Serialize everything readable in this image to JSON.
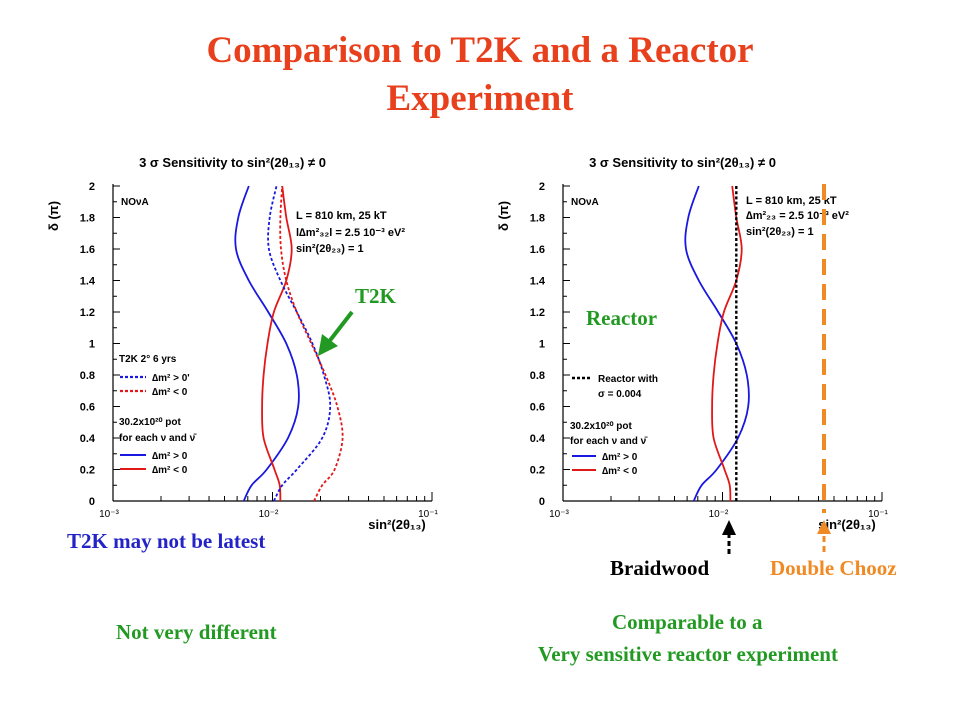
{
  "slide": {
    "title_line1": "Comparison to T2K and a Reactor",
    "title_line2": "Experiment",
    "left_note": "T2K may not be latest",
    "left_caption": "Not very different",
    "right_caption_line1": "Comparable to a",
    "right_caption_line2": "Very sensitive reactor experiment",
    "t2k_callout": "T2K",
    "reactor_callout": "Reactor",
    "braidwood_label": "Braidwood",
    "doublechooz_label": "Double Chooz",
    "colors": {
      "title": "#e8401c",
      "blue_text": "#2323c8",
      "green": "#229922",
      "orange": "#f08a24",
      "blue": "#1818e0",
      "red": "#e01818"
    }
  },
  "chart_data": [
    {
      "type": "line",
      "title": "3 σ Sensitivity to sin²(2θ₁₃) ≠ 0",
      "xlabel": "sin²(2θ₁₃)",
      "ylabel": "δ (π)",
      "xscale": "log",
      "xlim": [
        0.001,
        0.1
      ],
      "ylim": [
        0,
        2
      ],
      "x_ticks": [
        "10⁻³",
        "10⁻²",
        "10⁻¹"
      ],
      "y_ticks": [
        "0",
        "0.2",
        "0.4",
        "0.6",
        "0.8",
        "1",
        "1.2",
        "1.4",
        "1.6",
        "1.8",
        "2"
      ],
      "annotations": [
        "NOνA",
        "L = 810 km, 25 kT",
        "l∆m²₃₂l = 2.5 10⁻³ eV²",
        "sin²(2θ₂₃) = 1",
        "T2K 2° 6 yrs",
        "30.2x10²⁰ pot",
        "for each ν and ν̄"
      ],
      "series": [
        {
          "name": "∆m² > 0",
          "color": "#1818e0",
          "dash": "solid",
          "points": [
            [
              0.0066,
              0
            ],
            [
              0.0074,
              0.1
            ],
            [
              0.0092,
              0.2
            ],
            [
              0.0125,
              0.4
            ],
            [
              0.0145,
              0.6
            ],
            [
              0.0142,
              0.8
            ],
            [
              0.0122,
              1.0
            ],
            [
              0.0094,
              1.2
            ],
            [
              0.0071,
              1.4
            ],
            [
              0.0059,
              1.6
            ],
            [
              0.0061,
              1.8
            ],
            [
              0.0071,
              2.0
            ]
          ]
        },
        {
          "name": "∆m² < 0",
          "color": "#e01818",
          "dash": "solid",
          "points": [
            [
              0.0112,
              0
            ],
            [
              0.0111,
              0.1
            ],
            [
              0.0103,
              0.2
            ],
            [
              0.0088,
              0.4
            ],
            [
              0.0086,
              0.6
            ],
            [
              0.0088,
              0.8
            ],
            [
              0.0093,
              1.0
            ],
            [
              0.0102,
              1.2
            ],
            [
              0.0122,
              1.4
            ],
            [
              0.0132,
              1.6
            ],
            [
              0.0122,
              1.8
            ],
            [
              0.0115,
              2.0
            ]
          ]
        },
        {
          "name": "∆m² > 0'",
          "color": "#1818e0",
          "dash": "dotted",
          "points": [
            [
              0.0102,
              0
            ],
            [
              0.0115,
              0.1
            ],
            [
              0.0142,
              0.2
            ],
            [
              0.0205,
              0.4
            ],
            [
              0.023,
              0.6
            ],
            [
              0.021,
              0.8
            ],
            [
              0.0178,
              1.0
            ],
            [
              0.0142,
              1.2
            ],
            [
              0.0112,
              1.4
            ],
            [
              0.0095,
              1.6
            ],
            [
              0.0096,
              1.8
            ],
            [
              0.0106,
              2.0
            ]
          ]
        },
        {
          "name": "∆m² < 0",
          "color": "#e01818",
          "dash": "dotted",
          "points": [
            [
              0.0182,
              0
            ],
            [
              0.0205,
              0.1
            ],
            [
              0.0245,
              0.2
            ],
            [
              0.0275,
              0.4
            ],
            [
              0.0255,
              0.6
            ],
            [
              0.0215,
              0.8
            ],
            [
              0.0175,
              1.0
            ],
            [
              0.0142,
              1.2
            ],
            [
              0.0122,
              1.4
            ],
            [
              0.0113,
              1.6
            ],
            [
              0.0112,
              1.8
            ],
            [
              0.0115,
              2.0
            ]
          ]
        }
      ]
    },
    {
      "type": "line",
      "title": "3 σ Sensitivity to sin²(2θ₁₃) ≠ 0",
      "xlabel": "sin²(2θ₁₃)",
      "ylabel": "δ (π)",
      "xscale": "log",
      "xlim": [
        0.001,
        0.1
      ],
      "ylim": [
        0,
        2
      ],
      "x_ticks": [
        "10⁻³",
        "10⁻²",
        "10⁻¹"
      ],
      "y_ticks": [
        "0",
        "0.2",
        "0.4",
        "0.6",
        "0.8",
        "1",
        "1.2",
        "1.4",
        "1.6",
        "1.8",
        "2"
      ],
      "annotations": [
        "NOνA",
        "L = 810 km, 25 kT",
        "∆m²₂₃ = 2.5 10⁻³ eV²",
        "sin²(2θ₂₃) = 1",
        "Reactor with",
        "σ = 0.004",
        "30.2x10²⁰ pot",
        "for each ν and ν̄"
      ],
      "series": [
        {
          "name": "∆m² > 0",
          "color": "#1818e0",
          "dash": "solid",
          "points": [
            [
              0.0066,
              0
            ],
            [
              0.0074,
              0.1
            ],
            [
              0.0092,
              0.2
            ],
            [
              0.0125,
              0.4
            ],
            [
              0.0145,
              0.6
            ],
            [
              0.0142,
              0.8
            ],
            [
              0.0122,
              1.0
            ],
            [
              0.0094,
              1.2
            ],
            [
              0.0071,
              1.4
            ],
            [
              0.0059,
              1.6
            ],
            [
              0.0061,
              1.8
            ],
            [
              0.0071,
              2.0
            ]
          ]
        },
        {
          "name": "∆m² < 0",
          "color": "#e01818",
          "dash": "solid",
          "points": [
            [
              0.0112,
              0
            ],
            [
              0.0111,
              0.1
            ],
            [
              0.0103,
              0.2
            ],
            [
              0.0088,
              0.4
            ],
            [
              0.0086,
              0.6
            ],
            [
              0.0088,
              0.8
            ],
            [
              0.0093,
              1.0
            ],
            [
              0.0102,
              1.2
            ],
            [
              0.0122,
              1.4
            ],
            [
              0.0132,
              1.6
            ],
            [
              0.0122,
              1.8
            ],
            [
              0.0115,
              2.0
            ]
          ]
        },
        {
          "name": "Reactor with σ = 0.004",
          "color": "#000000",
          "dash": "dotted",
          "points": [
            [
              0.0122,
              0
            ],
            [
              0.0122,
              2
            ]
          ]
        }
      ]
    }
  ]
}
